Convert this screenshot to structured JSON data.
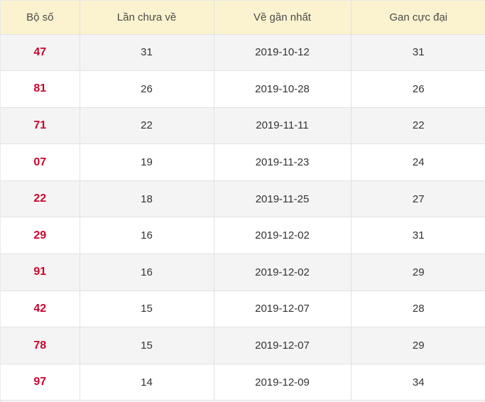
{
  "table": {
    "columns": [
      {
        "key": "bo_so",
        "label": "Bộ số"
      },
      {
        "key": "lan_chua_ve",
        "label": "Lần chưa về"
      },
      {
        "key": "ve_gan_nhat",
        "label": "Về gần nhất"
      },
      {
        "key": "gan_cuc_dai",
        "label": "Gan cực đại"
      }
    ],
    "rows": [
      {
        "bo_so": "47",
        "lan_chua_ve": "31",
        "ve_gan_nhat": "2019-10-12",
        "gan_cuc_dai": "31"
      },
      {
        "bo_so": "81",
        "lan_chua_ve": "26",
        "ve_gan_nhat": "2019-10-28",
        "gan_cuc_dai": "26"
      },
      {
        "bo_so": "71",
        "lan_chua_ve": "22",
        "ve_gan_nhat": "2019-11-11",
        "gan_cuc_dai": "22"
      },
      {
        "bo_so": "07",
        "lan_chua_ve": "19",
        "ve_gan_nhat": "2019-11-23",
        "gan_cuc_dai": "24"
      },
      {
        "bo_so": "22",
        "lan_chua_ve": "18",
        "ve_gan_nhat": "2019-11-25",
        "gan_cuc_dai": "27"
      },
      {
        "bo_so": "29",
        "lan_chua_ve": "16",
        "ve_gan_nhat": "2019-12-02",
        "gan_cuc_dai": "31"
      },
      {
        "bo_so": "91",
        "lan_chua_ve": "16",
        "ve_gan_nhat": "2019-12-02",
        "gan_cuc_dai": "29"
      },
      {
        "bo_so": "42",
        "lan_chua_ve": "15",
        "ve_gan_nhat": "2019-12-07",
        "gan_cuc_dai": "28"
      },
      {
        "bo_so": "78",
        "lan_chua_ve": "15",
        "ve_gan_nhat": "2019-12-07",
        "gan_cuc_dai": "29"
      },
      {
        "bo_so": "97",
        "lan_chua_ve": "14",
        "ve_gan_nhat": "2019-12-09",
        "gan_cuc_dai": "34"
      }
    ]
  },
  "colors": {
    "header_bg": "#fbf3cf",
    "row_alt_bg": "#f4f4f4",
    "row_bg": "#ffffff",
    "border": "#e1e1e1",
    "header_text": "#4a4a4a",
    "cell_text": "#333333",
    "number_red": "#c9052d"
  }
}
